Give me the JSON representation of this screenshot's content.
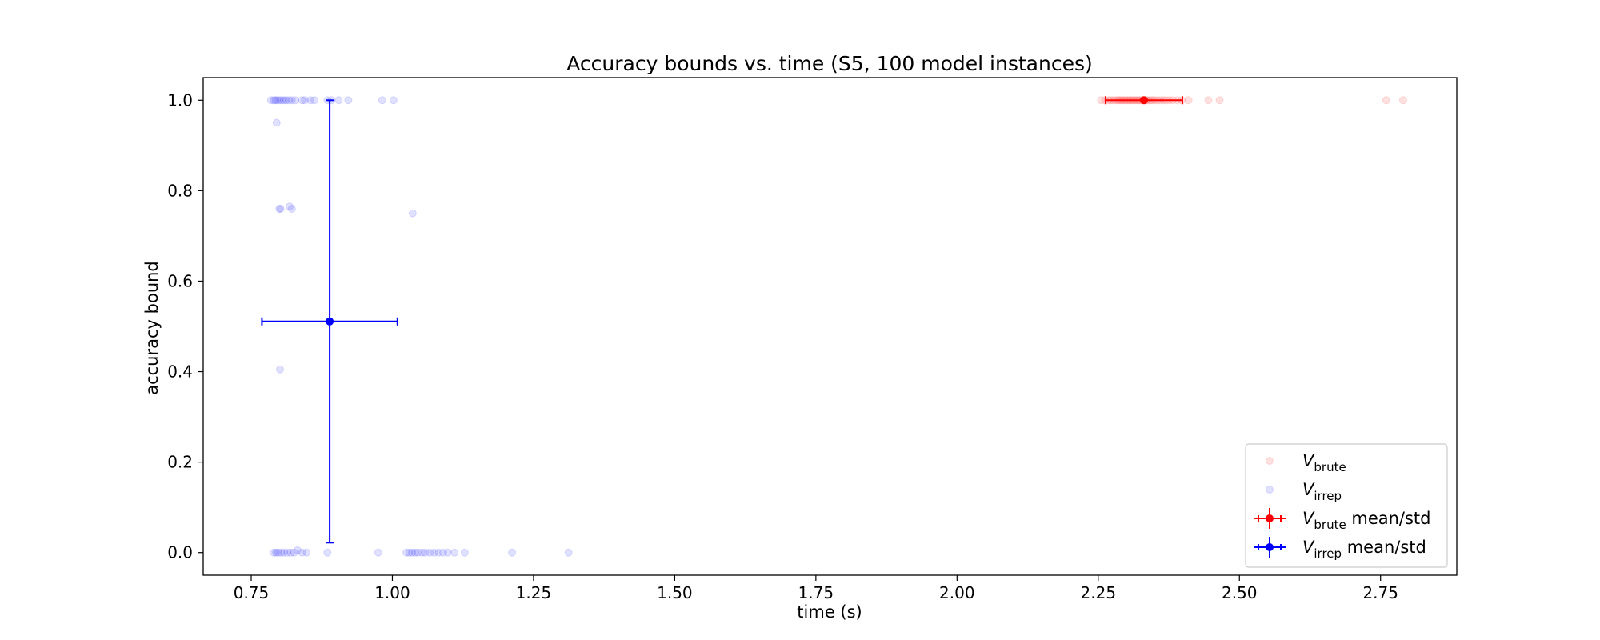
{
  "chart_data": {
    "type": "scatter",
    "title": "Accuracy bounds vs. time (S5, 100 model instances)",
    "xlabel": "time (s)",
    "ylabel": "accuracy bound",
    "xlim": [
      0.665,
      2.885
    ],
    "ylim": [
      -0.05,
      1.05
    ],
    "xticks": [
      "0.75",
      "1.00",
      "1.25",
      "1.50",
      "1.75",
      "2.00",
      "2.25",
      "2.50",
      "2.75"
    ],
    "yticks": [
      "0.0",
      "0.2",
      "0.4",
      "0.6",
      "0.8",
      "1.0"
    ],
    "grid": false,
    "legend_position": "lower-right",
    "series": [
      {
        "name": "V_brute",
        "color": "#ff0000",
        "points": [
          {
            "x": 2.255,
            "y": 1.0
          },
          {
            "x": 2.262,
            "y": 1.0
          },
          {
            "x": 2.268,
            "y": 1.0
          },
          {
            "x": 2.272,
            "y": 1.0
          },
          {
            "x": 2.276,
            "y": 1.0
          },
          {
            "x": 2.28,
            "y": 1.0
          },
          {
            "x": 2.284,
            "y": 1.0
          },
          {
            "x": 2.287,
            "y": 1.0
          },
          {
            "x": 2.29,
            "y": 1.0
          },
          {
            "x": 2.293,
            "y": 1.0
          },
          {
            "x": 2.296,
            "y": 1.0
          },
          {
            "x": 2.299,
            "y": 1.0
          },
          {
            "x": 2.302,
            "y": 1.0
          },
          {
            "x": 2.305,
            "y": 1.0
          },
          {
            "x": 2.308,
            "y": 1.0
          },
          {
            "x": 2.311,
            "y": 1.0
          },
          {
            "x": 2.314,
            "y": 1.0
          },
          {
            "x": 2.317,
            "y": 1.0
          },
          {
            "x": 2.32,
            "y": 1.0
          },
          {
            "x": 2.323,
            "y": 1.0
          },
          {
            "x": 2.326,
            "y": 1.0
          },
          {
            "x": 2.329,
            "y": 1.0
          },
          {
            "x": 2.332,
            "y": 1.0
          },
          {
            "x": 2.335,
            "y": 1.0
          },
          {
            "x": 2.338,
            "y": 1.0
          },
          {
            "x": 2.342,
            "y": 1.0
          },
          {
            "x": 2.346,
            "y": 1.0
          },
          {
            "x": 2.35,
            "y": 1.0
          },
          {
            "x": 2.355,
            "y": 1.0
          },
          {
            "x": 2.36,
            "y": 1.0
          },
          {
            "x": 2.365,
            "y": 1.0
          },
          {
            "x": 2.37,
            "y": 1.0
          },
          {
            "x": 2.376,
            "y": 1.0
          },
          {
            "x": 2.382,
            "y": 1.0
          },
          {
            "x": 2.39,
            "y": 1.0
          },
          {
            "x": 2.398,
            "y": 1.0
          },
          {
            "x": 2.41,
            "y": 1.0
          },
          {
            "x": 2.445,
            "y": 1.0
          },
          {
            "x": 2.465,
            "y": 1.0
          },
          {
            "x": 2.76,
            "y": 1.0
          },
          {
            "x": 2.79,
            "y": 1.0
          }
        ],
        "mean": {
          "x": 2.331,
          "y": 1.0
        },
        "std": {
          "x": 0.068,
          "y": 0.0
        }
      },
      {
        "name": "V_irrep",
        "color": "#0000ff",
        "points": [
          {
            "x": 0.785,
            "y": 1.0
          },
          {
            "x": 0.79,
            "y": 1.0
          },
          {
            "x": 0.793,
            "y": 1.0
          },
          {
            "x": 0.796,
            "y": 1.0
          },
          {
            "x": 0.8,
            "y": 1.0
          },
          {
            "x": 0.804,
            "y": 1.0
          },
          {
            "x": 0.808,
            "y": 1.0
          },
          {
            "x": 0.812,
            "y": 1.0
          },
          {
            "x": 0.817,
            "y": 1.0
          },
          {
            "x": 0.822,
            "y": 1.0
          },
          {
            "x": 0.828,
            "y": 1.0
          },
          {
            "x": 0.84,
            "y": 1.0
          },
          {
            "x": 0.845,
            "y": 1.0
          },
          {
            "x": 0.855,
            "y": 1.0
          },
          {
            "x": 0.862,
            "y": 1.0
          },
          {
            "x": 0.885,
            "y": 1.0
          },
          {
            "x": 0.892,
            "y": 1.0
          },
          {
            "x": 0.905,
            "y": 1.0
          },
          {
            "x": 0.922,
            "y": 1.0
          },
          {
            "x": 0.982,
            "y": 1.0
          },
          {
            "x": 1.002,
            "y": 1.0
          },
          {
            "x": 0.795,
            "y": 0.95
          },
          {
            "x": 0.8,
            "y": 0.76
          },
          {
            "x": 0.802,
            "y": 0.76
          },
          {
            "x": 0.818,
            "y": 0.765
          },
          {
            "x": 0.822,
            "y": 0.76
          },
          {
            "x": 1.036,
            "y": 0.75
          },
          {
            "x": 0.801,
            "y": 0.405
          },
          {
            "x": 0.79,
            "y": 0.0
          },
          {
            "x": 0.794,
            "y": 0.0
          },
          {
            "x": 0.798,
            "y": 0.0
          },
          {
            "x": 0.803,
            "y": 0.0
          },
          {
            "x": 0.808,
            "y": 0.0
          },
          {
            "x": 0.814,
            "y": 0.0
          },
          {
            "x": 0.82,
            "y": 0.0
          },
          {
            "x": 0.826,
            "y": 0.0
          },
          {
            "x": 0.832,
            "y": 0.005
          },
          {
            "x": 0.84,
            "y": 0.0
          },
          {
            "x": 0.848,
            "y": 0.0
          },
          {
            "x": 0.885,
            "y": 0.0
          },
          {
            "x": 0.975,
            "y": 0.0
          },
          {
            "x": 1.025,
            "y": 0.0
          },
          {
            "x": 1.03,
            "y": 0.0
          },
          {
            "x": 1.035,
            "y": 0.0
          },
          {
            "x": 1.04,
            "y": 0.0
          },
          {
            "x": 1.045,
            "y": 0.0
          },
          {
            "x": 1.052,
            "y": 0.0
          },
          {
            "x": 1.058,
            "y": 0.0
          },
          {
            "x": 1.066,
            "y": 0.0
          },
          {
            "x": 1.074,
            "y": 0.0
          },
          {
            "x": 1.082,
            "y": 0.0
          },
          {
            "x": 1.09,
            "y": 0.0
          },
          {
            "x": 1.098,
            "y": 0.0
          },
          {
            "x": 1.11,
            "y": 0.0
          },
          {
            "x": 1.128,
            "y": 0.0
          },
          {
            "x": 1.212,
            "y": 0.0
          },
          {
            "x": 1.312,
            "y": 0.0
          }
        ],
        "mean": {
          "x": 0.889,
          "y": 0.511
        },
        "std": {
          "x": 0.12,
          "y": 0.489
        }
      }
    ],
    "legend": [
      {
        "kind": "points",
        "series": "V_brute",
        "base": "V",
        "sub": "brute",
        "suffix": ""
      },
      {
        "kind": "points",
        "series": "V_irrep",
        "base": "V",
        "sub": "irrep",
        "suffix": ""
      },
      {
        "kind": "errorbar",
        "series": "V_brute",
        "base": "V",
        "sub": "brute",
        "suffix": " mean/std"
      },
      {
        "kind": "errorbar",
        "series": "V_irrep",
        "base": "V",
        "sub": "irrep",
        "suffix": " mean/std"
      }
    ]
  }
}
